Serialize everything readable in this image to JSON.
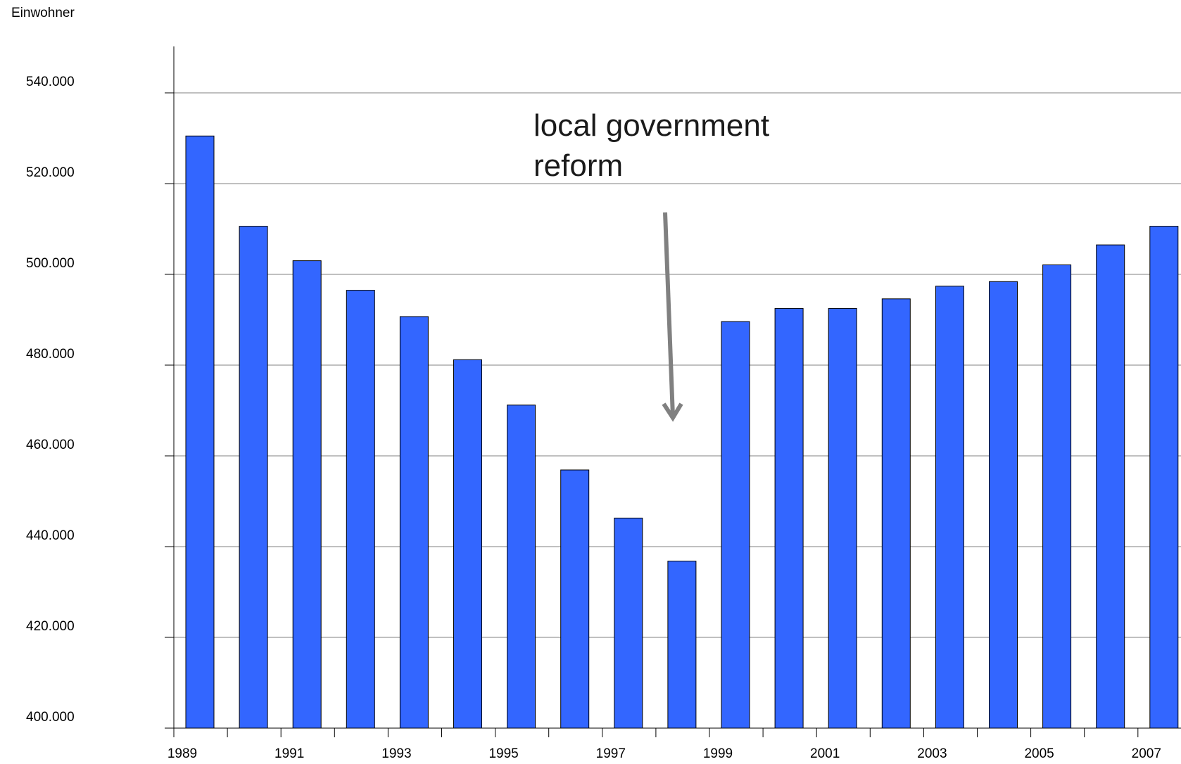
{
  "chart_data": {
    "type": "bar",
    "ylabel": "Einwohner",
    "xlabel": "",
    "title": "",
    "ylim": [
      400000,
      540000
    ],
    "y_ticks": [
      400000,
      420000,
      440000,
      460000,
      480000,
      500000,
      520000,
      540000
    ],
    "y_tick_labels": [
      "400.000",
      "420.000",
      "440.000",
      "460.000",
      "480.000",
      "500.000",
      "520.000",
      "540.000"
    ],
    "categories": [
      "1989",
      "1990",
      "1991",
      "1992",
      "1993",
      "1994",
      "1995",
      "1996",
      "1997",
      "1998",
      "1999",
      "2000",
      "2001",
      "2002",
      "2003",
      "2004",
      "2005",
      "2006",
      "2007"
    ],
    "x_tick_labels": [
      "1989",
      "1991",
      "1993",
      "1995",
      "1997",
      "1999",
      "2001",
      "2003",
      "2005",
      "2007"
    ],
    "values": [
      530500,
      510600,
      503000,
      496500,
      490700,
      481200,
      471200,
      456900,
      446300,
      436800,
      489600,
      492500,
      492500,
      494600,
      497400,
      498400,
      502100,
      506500,
      510600
    ],
    "grid": true,
    "legend": "none",
    "colors": {
      "bar": "#3366ff",
      "bar_edge": "#000000",
      "grid": "#808080",
      "axis": "#000000",
      "arrow": "#808080"
    },
    "annotation": {
      "lines": [
        "local government",
        "reform"
      ]
    }
  }
}
